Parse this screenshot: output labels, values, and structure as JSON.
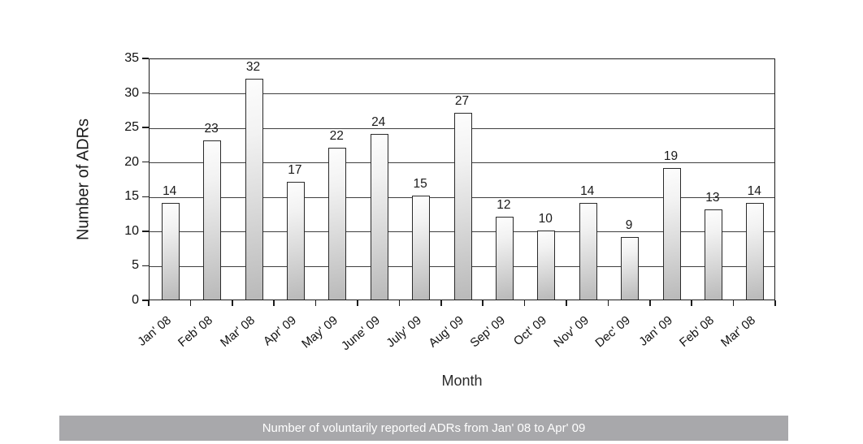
{
  "figure": {
    "caption": "Number of voluntarily reported ADRs from Jan' 08 to Apr' 09"
  },
  "chart_data": {
    "type": "bar",
    "title": "",
    "xlabel": "Month",
    "ylabel": "Number of ADRs",
    "categories": [
      "Jan' 08",
      "Feb' 08",
      "Mar' 08",
      "Apr' 09",
      "May' 09",
      "June' 09",
      "July' 09",
      "Aug' 09",
      "Sep' 09",
      "Oct' 09",
      "Nov' 09",
      "Dec' 09",
      "Jan' 09",
      "Feb' 08",
      "Mar' 08"
    ],
    "values": [
      14,
      23,
      32,
      17,
      22,
      24,
      15,
      27,
      12,
      10,
      14,
      9,
      19,
      13,
      14
    ],
    "ylim": [
      0,
      35
    ],
    "ytick_step": 5,
    "yticks": [
      0,
      5,
      10,
      15,
      20,
      25,
      30,
      35
    ],
    "grid": true,
    "legend": "none",
    "bar_fill_light": "#fdfdfd",
    "bar_fill_dark": "#b9b9b9",
    "bar_border_color": "#2a2a2a",
    "gridline_color": "#3f3f3f",
    "caption_bg_color": "#a8a8ab",
    "caption_text_color": "#ffffff"
  }
}
